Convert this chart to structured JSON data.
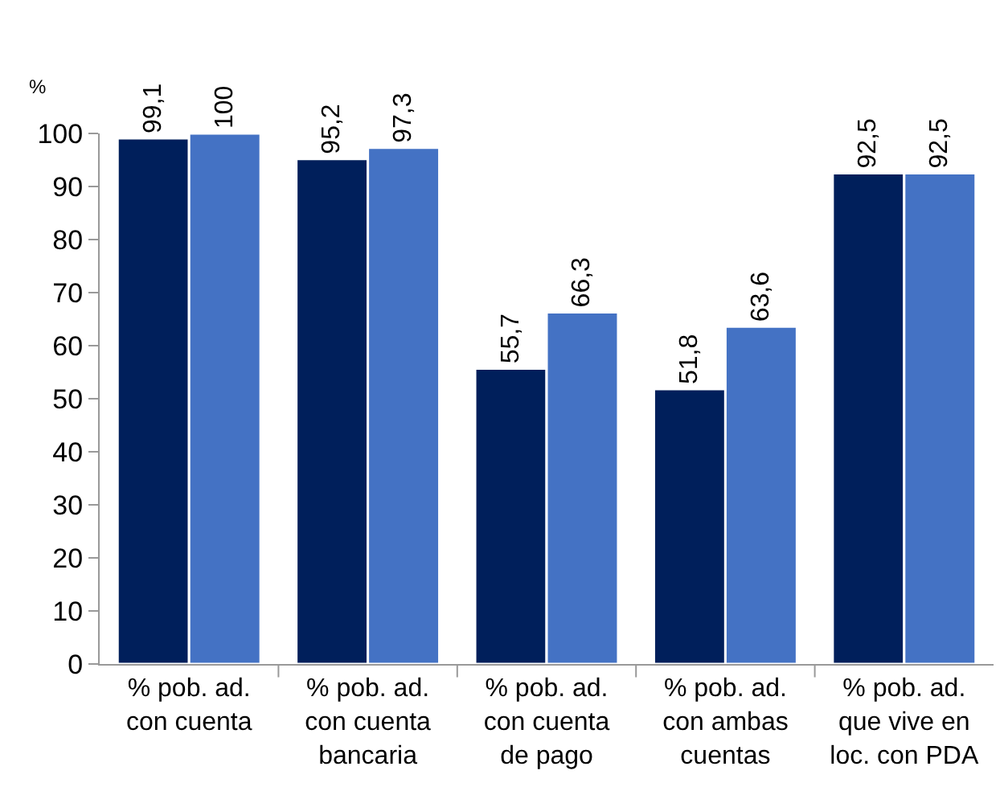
{
  "chart_data": {
    "type": "bar",
    "ylabel": "%",
    "categories": [
      "% pob. ad.\ncon cuenta",
      "% pob. ad.\ncon cuenta\nbancaria",
      "% pob. ad.\ncon cuenta\nde pago",
      "% pob. ad.\ncon ambas\ncuentas",
      "% pob. ad.\nque vive en\nloc. con PDA"
    ],
    "series": [
      {
        "color": "#001f5b",
        "values": [
          99.1,
          95.2,
          55.7,
          51.8,
          92.5
        ],
        "value_labels": [
          "99,1",
          "95,2",
          "55,7",
          "51,8",
          "92,5"
        ]
      },
      {
        "color": "#4472c4",
        "values": [
          100,
          97.3,
          66.3,
          63.6,
          92.5
        ],
        "value_labels": [
          "100",
          "97,3",
          "66,3",
          "63,6",
          "92,5"
        ]
      }
    ],
    "ylim": [
      0,
      100
    ],
    "yticks": [
      0,
      10,
      20,
      30,
      40,
      50,
      60,
      70,
      80,
      90,
      100
    ]
  }
}
